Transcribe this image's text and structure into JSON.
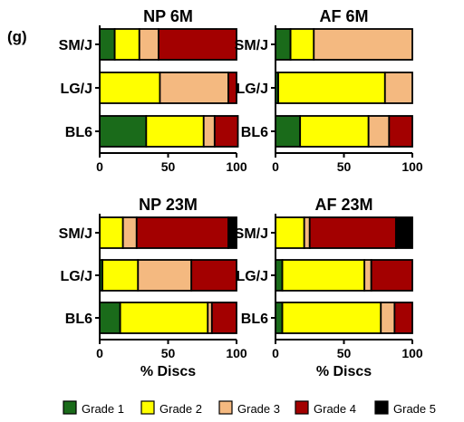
{
  "figure": {
    "panel_label": "(g)",
    "legend": {
      "entries": [
        {
          "label": "Grade 1",
          "color": "#1a6b1a"
        },
        {
          "label": "Grade 2",
          "color": "#ffff00"
        },
        {
          "label": "Grade 3",
          "color": "#f4b980"
        },
        {
          "label": "Grade 4",
          "color": "#a30000"
        },
        {
          "label": "Grade 5",
          "color": "#000000"
        }
      ]
    }
  },
  "chart_data": [
    {
      "type": "bar",
      "orientation": "horizontal",
      "stacked": true,
      "title": "NP 6M",
      "categories": [
        "SM/J",
        "LG/J",
        "BL6"
      ],
      "xlabel": "",
      "xlim": [
        0,
        100
      ],
      "xticks": [
        "0",
        "50",
        "100"
      ],
      "series": [
        {
          "name": "Grade 1",
          "values": [
            11,
            0,
            34
          ]
        },
        {
          "name": "Grade 2",
          "values": [
            18,
            44,
            42
          ]
        },
        {
          "name": "Grade 3",
          "values": [
            14,
            50,
            8
          ]
        },
        {
          "name": "Grade 4",
          "values": [
            57,
            6,
            17
          ]
        },
        {
          "name": "Grade 5",
          "values": [
            0,
            0,
            0
          ]
        }
      ]
    },
    {
      "type": "bar",
      "orientation": "horizontal",
      "stacked": true,
      "title": "AF 6M",
      "categories": [
        "SM/J",
        "LG/J",
        "BL6"
      ],
      "xlabel": "",
      "xlim": [
        0,
        100
      ],
      "xticks": [
        "0",
        "50",
        "100"
      ],
      "series": [
        {
          "name": "Grade 1",
          "values": [
            11,
            2,
            18
          ]
        },
        {
          "name": "Grade 2",
          "values": [
            17,
            78,
            50
          ]
        },
        {
          "name": "Grade 3",
          "values": [
            72,
            20,
            15
          ]
        },
        {
          "name": "Grade 4",
          "values": [
            0,
            0,
            17
          ]
        },
        {
          "name": "Grade 5",
          "values": [
            0,
            0,
            0
          ]
        }
      ]
    },
    {
      "type": "bar",
      "orientation": "horizontal",
      "stacked": true,
      "title": "NP 23M",
      "categories": [
        "SM/J",
        "LG/J",
        "BL6"
      ],
      "xlabel": "% Discs",
      "xlim": [
        0,
        100
      ],
      "xticks": [
        "0",
        "50",
        "100"
      ],
      "series": [
        {
          "name": "Grade 1",
          "values": [
            0,
            2,
            15
          ]
        },
        {
          "name": "Grade 2",
          "values": [
            17,
            26,
            64
          ]
        },
        {
          "name": "Grade 3",
          "values": [
            10,
            39,
            3
          ]
        },
        {
          "name": "Grade 4",
          "values": [
            67,
            33,
            18
          ]
        },
        {
          "name": "Grade 5",
          "values": [
            6,
            0,
            0
          ]
        }
      ]
    },
    {
      "type": "bar",
      "orientation": "horizontal",
      "stacked": true,
      "title": "AF 23M",
      "categories": [
        "SM/J",
        "LG/J",
        "BL6"
      ],
      "xlabel": "% Discs",
      "xlim": [
        0,
        100
      ],
      "xticks": [
        "0",
        "50",
        "100"
      ],
      "series": [
        {
          "name": "Grade 1",
          "values": [
            0,
            5,
            5
          ]
        },
        {
          "name": "Grade 2",
          "values": [
            21,
            60,
            72
          ]
        },
        {
          "name": "Grade 3",
          "values": [
            4,
            5,
            10
          ]
        },
        {
          "name": "Grade 4",
          "values": [
            63,
            30,
            13
          ]
        },
        {
          "name": "Grade 5",
          "values": [
            12,
            0,
            0
          ]
        }
      ]
    }
  ]
}
